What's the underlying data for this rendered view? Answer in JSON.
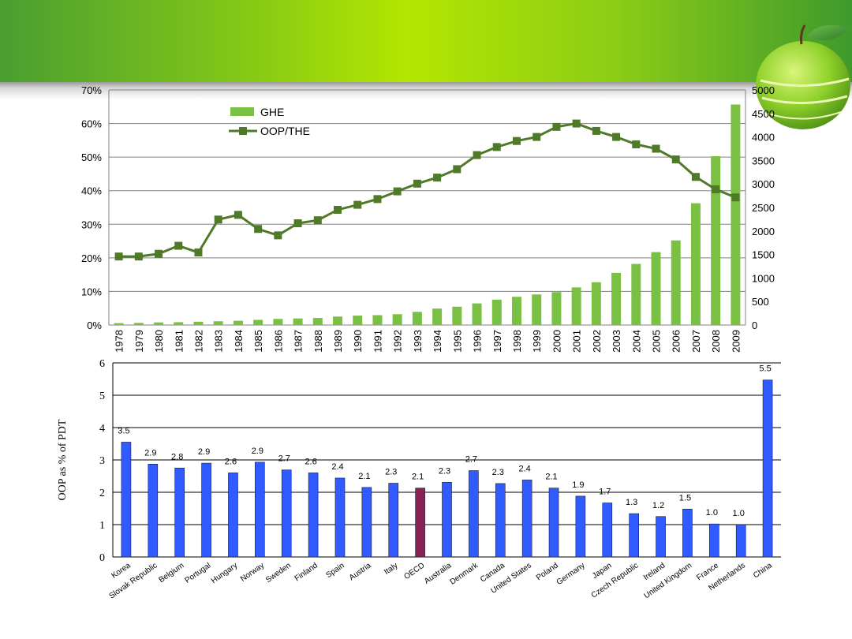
{
  "colors": {
    "ghe_bar": "#7ac143",
    "oop_line": "#4f7a28",
    "country_bar": "#2f5bff",
    "highlight_bar": "#8b2252",
    "gridline": "#808080"
  },
  "icons": {
    "decoration": "green-apple-icon"
  },
  "chart_data": [
    {
      "type": "bar",
      "title": "",
      "combo_with": "line",
      "categories": [
        "1978",
        "1979",
        "1980",
        "1981",
        "1982",
        "1983",
        "1984",
        "1985",
        "1986",
        "1987",
        "1988",
        "1989",
        "1990",
        "1991",
        "1992",
        "1993",
        "1994",
        "1995",
        "1996",
        "1997",
        "1998",
        "1999",
        "2000",
        "2001",
        "2002",
        "2003",
        "2004",
        "2005",
        "2006",
        "2007",
        "2008",
        "2009"
      ],
      "left_axis": {
        "ylim": [
          0,
          70
        ],
        "ticks": [
          "0%",
          "10%",
          "20%",
          "30%",
          "40%",
          "50%",
          "60%",
          "70%"
        ]
      },
      "right_axis": {
        "ylim": [
          0,
          5000
        ],
        "ticks": [
          "0",
          "500",
          "1000",
          "1500",
          "2000",
          "2500",
          "3000",
          "3500",
          "4000",
          "4500",
          "5000"
        ]
      },
      "grid": true,
      "legend_position": "top-left",
      "series": [
        {
          "name": "GHE",
          "type": "bar",
          "axis": "right",
          "values": [
            40,
            45,
            55,
            60,
            70,
            80,
            90,
            110,
            130,
            140,
            150,
            180,
            200,
            210,
            230,
            280,
            350,
            390,
            460,
            540,
            600,
            650,
            700,
            800,
            910,
            1110,
            1300,
            1550,
            1800,
            2590,
            3590,
            4690
          ]
        },
        {
          "name": "OOP/THE",
          "type": "line",
          "axis": "left",
          "values": [
            20.4,
            20.4,
            21.2,
            23.6,
            21.6,
            31.4,
            32.8,
            28.6,
            26.7,
            30.3,
            31.2,
            34.3,
            35.8,
            37.5,
            39.8,
            42.1,
            43.9,
            46.4,
            50.6,
            53.0,
            54.8,
            56.0,
            59.0,
            60.0,
            57.8,
            56.0,
            53.8,
            52.5,
            49.3,
            44.1,
            40.4,
            38.0
          ]
        }
      ]
    },
    {
      "type": "bar",
      "title": "",
      "ylabel": "OOP as % of PDT",
      "ylim": [
        0,
        6
      ],
      "yticks": [
        "0",
        "1",
        "2",
        "3",
        "4",
        "5",
        "6"
      ],
      "grid": true,
      "categories": [
        "Korea",
        "Slovak Republic",
        "Belgium",
        "Portugal",
        "Hungary",
        "Norway",
        "Sweden",
        "Finland",
        "Spain",
        "Austria",
        "Italy",
        "OECD",
        "Australia",
        "Denmark",
        "Canada",
        "United States",
        "Poland",
        "Germany",
        "Japan",
        "Czech Republic",
        "Ireland",
        "United Kingdom",
        "France",
        "Netherlands",
        "China"
      ],
      "values": [
        3.55,
        2.87,
        2.75,
        2.9,
        2.6,
        2.93,
        2.69,
        2.6,
        2.44,
        2.15,
        2.28,
        2.13,
        2.31,
        2.67,
        2.27,
        2.38,
        2.13,
        1.88,
        1.67,
        1.34,
        1.25,
        1.48,
        1.02,
        1.0,
        5.47
      ],
      "data_labels": [
        "3.5",
        "2.9",
        "2.8",
        "2.9",
        "2.6",
        "2.9",
        "2.7",
        "2.6",
        "2.4",
        "2.1",
        "2.3",
        "2.1",
        "2.3",
        "2.7",
        "2.3",
        "2.4",
        "2.1",
        "1.9",
        "1.7",
        "1.3",
        "1.2",
        "1.5",
        "1.0",
        "1.0",
        "5.5"
      ],
      "highlight_category": "OECD"
    }
  ]
}
